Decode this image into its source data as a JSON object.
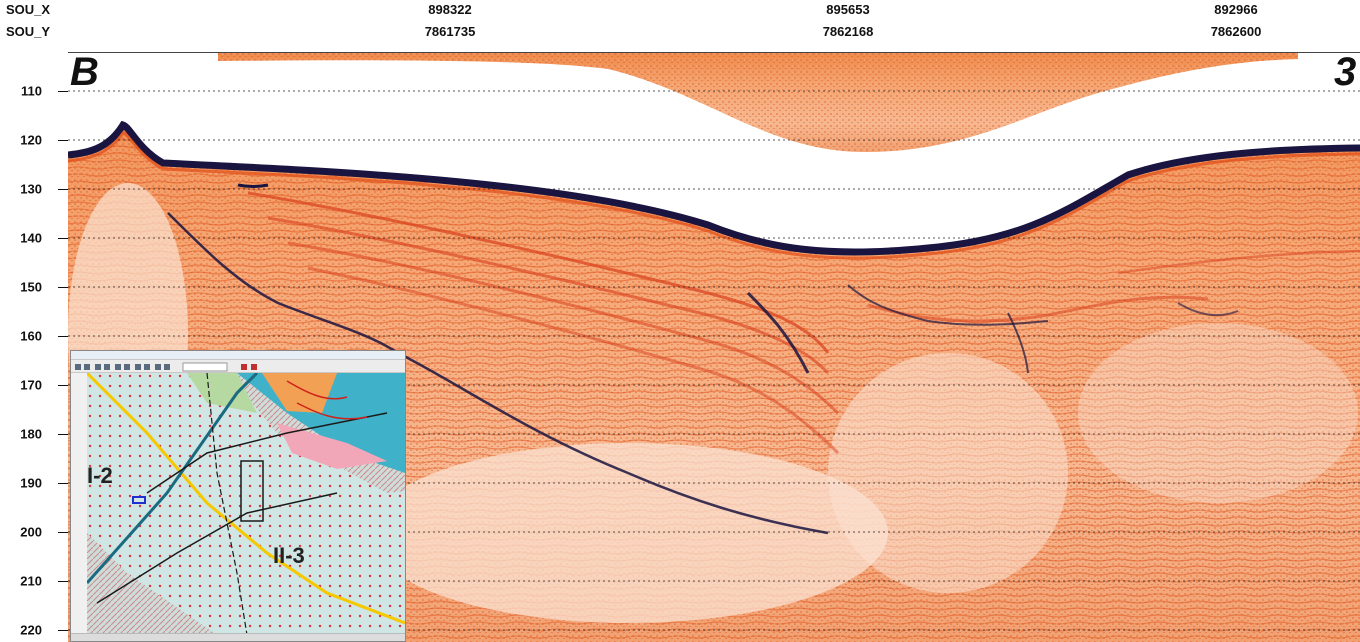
{
  "header": {
    "x_label": "SOU_X",
    "y_label": "SOU_Y",
    "x_values": [
      "898322",
      "895653",
      "892966"
    ],
    "y_values": [
      "7861735",
      "7862168",
      "7862600"
    ]
  },
  "axis": {
    "ticks": [
      "110",
      "120",
      "130",
      "140",
      "150",
      "160",
      "170",
      "180",
      "190",
      "200",
      "210",
      "220"
    ]
  },
  "profile": {
    "left_label": "B",
    "right_label": "3"
  },
  "inset": {
    "zone_a": "I-2",
    "zone_b": "II-3"
  },
  "colors": {
    "sediment": "#f0a070",
    "reflector": "#d8401c",
    "seabed": "#1a1440",
    "water": "#ffffff"
  }
}
